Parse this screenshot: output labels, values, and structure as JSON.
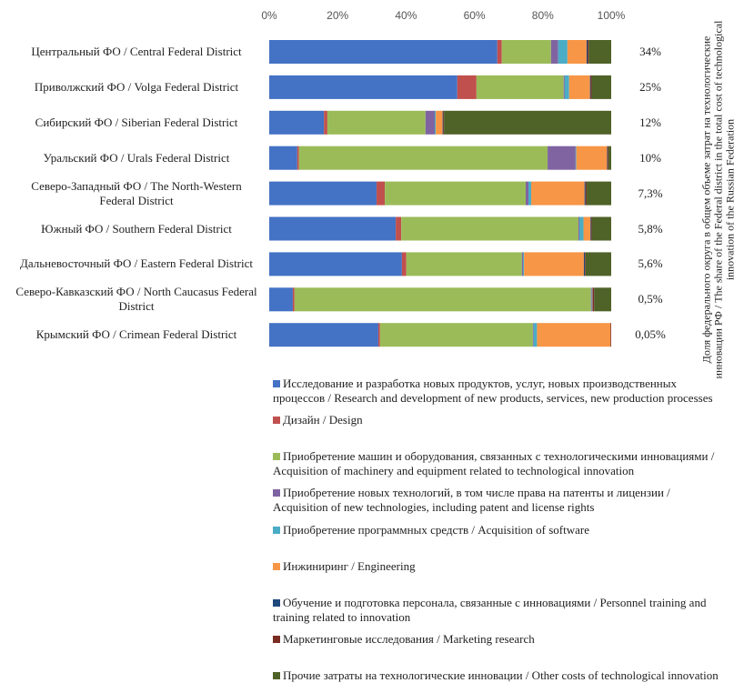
{
  "chart_data": {
    "type": "stacked_barh",
    "categories": [
      "Центральный ФО / Central Federal District",
      "Приволжский ФО / Volga Federal District",
      "Сибирский ФО / Siberian Federal District",
      "Уральский ФО  / Urals Federal District",
      "Северо-Западный ФО / The North-Western Federal District",
      "Южный ФО / Southern Federal District",
      "Дальневосточный ФО / Eastern Federal District",
      "Северо-Кавказский  ФО / North Caucasus Federal District",
      "Крымский ФО / Crimean  Federal District"
    ],
    "xlim": [
      0,
      100
    ],
    "xticks": [
      {
        "value": 0,
        "label": "0%"
      },
      {
        "value": 20,
        "label": "20%"
      },
      {
        "value": 40,
        "label": "40%"
      },
      {
        "value": 60,
        "label": "60%"
      },
      {
        "value": 80,
        "label": "80%"
      },
      {
        "value": 100,
        "label": "100%"
      }
    ],
    "share_labels": [
      "34%",
      "25%",
      "12%",
      "10%",
      "7,3%",
      "5,8%",
      "5,6%",
      "0,5%",
      "0,05%"
    ],
    "share_title": "Доля федерального округа в общем объеме затрат на технологические инновации РФ / The share of the Federal district in the total cost of technological innovation of the Russian Federation",
    "series": [
      {
        "name": "Исследование и разработка новых продуктов, услуг, новых производственных  процессов / Research and development of new products, services, new production processes",
        "color": "#4472c4",
        "values": [
          66.7,
          55,
          16,
          8.2,
          31.4,
          37,
          38.8,
          6.9,
          31.9
        ]
      },
      {
        "name": "Дизайн / Design",
        "color": "#c0504d",
        "values": [
          1.3,
          5.6,
          1,
          0.5,
          2.4,
          1.6,
          1.3,
          0.5,
          0.5
        ]
      },
      {
        "name": "Приобретение машин и оборудования, связанных с технологическими инновациями / Acquisition of machinery  and equipment related to technological innovation",
        "color": "#9bbb59",
        "values": [
          14.4,
          25.5,
          28.7,
          72.7,
          41.2,
          51.8,
          33.8,
          86.7,
          44.7
        ]
      },
      {
        "name": "Приобретение новых технологий,  в том числе права на патенты и лицензии  / Acquisition of new technologies, including patent and license rights",
        "color": "#8064a2",
        "values": [
          2.1,
          0.3,
          2.7,
          8.2,
          0.8,
          0.3,
          0.3,
          0.2,
          0.2
        ]
      },
      {
        "name": "Приобретение программных средств  / Acquisition of software",
        "color": "#4bacc6",
        "values": [
          2.7,
          1.3,
          0.3,
          0.2,
          0.8,
          1.2,
          0.3,
          0.1,
          1
        ]
      },
      {
        "name": "Инжиниринг  / Engineering",
        "color": "#f79646",
        "values": [
          5.6,
          6.1,
          2,
          9,
          15.6,
          2,
          17.5,
          0.1,
          21.5
        ]
      },
      {
        "name": "Обучение и подготовка  персонала, связанные с инновациями / Personnel training and training related to innovation",
        "color": "#1f497d",
        "values": [
          0.3,
          0.2,
          0.2,
          0.2,
          0.3,
          0.2,
          0.3,
          0.1,
          0
        ]
      },
      {
        "name": "Маркетинговые  исследования  / Marketing research",
        "color": "#7b2c22",
        "values": [
          0.3,
          0.3,
          0.2,
          0.2,
          0.3,
          0.2,
          0.2,
          0.4,
          0.2
        ]
      },
      {
        "name": "Прочие затраты на технологические  инновации / Other costs of technological innovation",
        "color": "#4f6228",
        "values": [
          6.6,
          5.7,
          48.9,
          0.8,
          7.2,
          5.7,
          7.5,
          5,
          0
        ]
      }
    ]
  }
}
